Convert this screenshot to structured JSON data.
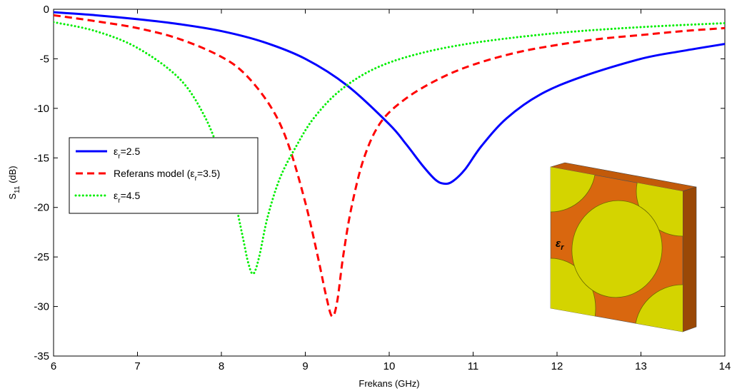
{
  "chart_data": {
    "type": "line",
    "xlabel": "Frekans (GHz)",
    "ylabel": {
      "base": "S",
      "sub": "11",
      "unit": " (dB)"
    },
    "xlim": [
      6,
      14
    ],
    "ylim": [
      -35,
      0
    ],
    "xticks": [
      "6",
      "7",
      "8",
      "9",
      "10",
      "11",
      "12",
      "13",
      "14"
    ],
    "yticks": [
      "0",
      "-5",
      "-10",
      "-15",
      "-20",
      "-25",
      "-30",
      "-35"
    ],
    "grid": false,
    "legend_position": "left",
    "series": [
      {
        "color": "#0000ff",
        "style": "solid",
        "legend": {
          "pre": "ε",
          "sub": "r",
          "post": "=2.5"
        },
        "x": [
          6,
          6.5,
          7,
          7.5,
          8,
          8.5,
          9,
          9.5,
          10,
          10.2,
          10.4,
          10.55,
          10.65,
          10.75,
          10.9,
          11.1,
          11.4,
          11.8,
          12.3,
          13,
          13.5,
          14
        ],
        "y": [
          -0.3,
          -0.6,
          -1.0,
          -1.5,
          -2.2,
          -3.3,
          -5.0,
          -7.7,
          -11.6,
          -13.6,
          -15.8,
          -17.2,
          -17.6,
          -17.4,
          -16.2,
          -13.8,
          -11.0,
          -8.6,
          -6.8,
          -5.0,
          -4.2,
          -3.5
        ]
      },
      {
        "color": "#ff0000",
        "style": "dashed",
        "legend": {
          "pre": "Referans model (ε",
          "sub": "r",
          "post": "=3.5)"
        },
        "x": [
          6,
          6.5,
          7,
          7.5,
          8,
          8.3,
          8.6,
          8.8,
          9.0,
          9.15,
          9.25,
          9.32,
          9.38,
          9.45,
          9.55,
          9.7,
          9.9,
          10.2,
          10.6,
          11,
          11.5,
          12,
          12.5,
          13,
          13.5,
          14
        ],
        "y": [
          -0.6,
          -1.2,
          -1.9,
          -3.0,
          -4.8,
          -6.7,
          -10.0,
          -13.7,
          -19.5,
          -25.0,
          -29.0,
          -31.0,
          -29.5,
          -25.0,
          -20.0,
          -15.0,
          -11.4,
          -9.0,
          -7.0,
          -5.6,
          -4.4,
          -3.6,
          -3.0,
          -2.6,
          -2.2,
          -1.9
        ]
      },
      {
        "color": "#00ee00",
        "style": "dotted",
        "legend": {
          "pre": "ε",
          "sub": "r",
          "post": "=4.5"
        },
        "x": [
          6,
          6.5,
          7,
          7.5,
          7.8,
          8.0,
          8.15,
          8.25,
          8.32,
          8.38,
          8.45,
          8.55,
          8.7,
          8.9,
          9.1,
          9.4,
          9.8,
          10.3,
          11,
          12,
          13,
          14
        ],
        "y": [
          -1.3,
          -2.2,
          -3.9,
          -7.0,
          -10.8,
          -15.0,
          -19.0,
          -22.8,
          -25.6,
          -26.7,
          -25.0,
          -21.0,
          -17.0,
          -13.7,
          -11.0,
          -8.3,
          -6.1,
          -4.6,
          -3.4,
          -2.4,
          -1.8,
          -1.4
        ]
      }
    ]
  },
  "inset": {
    "symbol": "ε",
    "sub": "r",
    "substrate_color": "#d9670f",
    "patch_color": "#d4d400"
  }
}
